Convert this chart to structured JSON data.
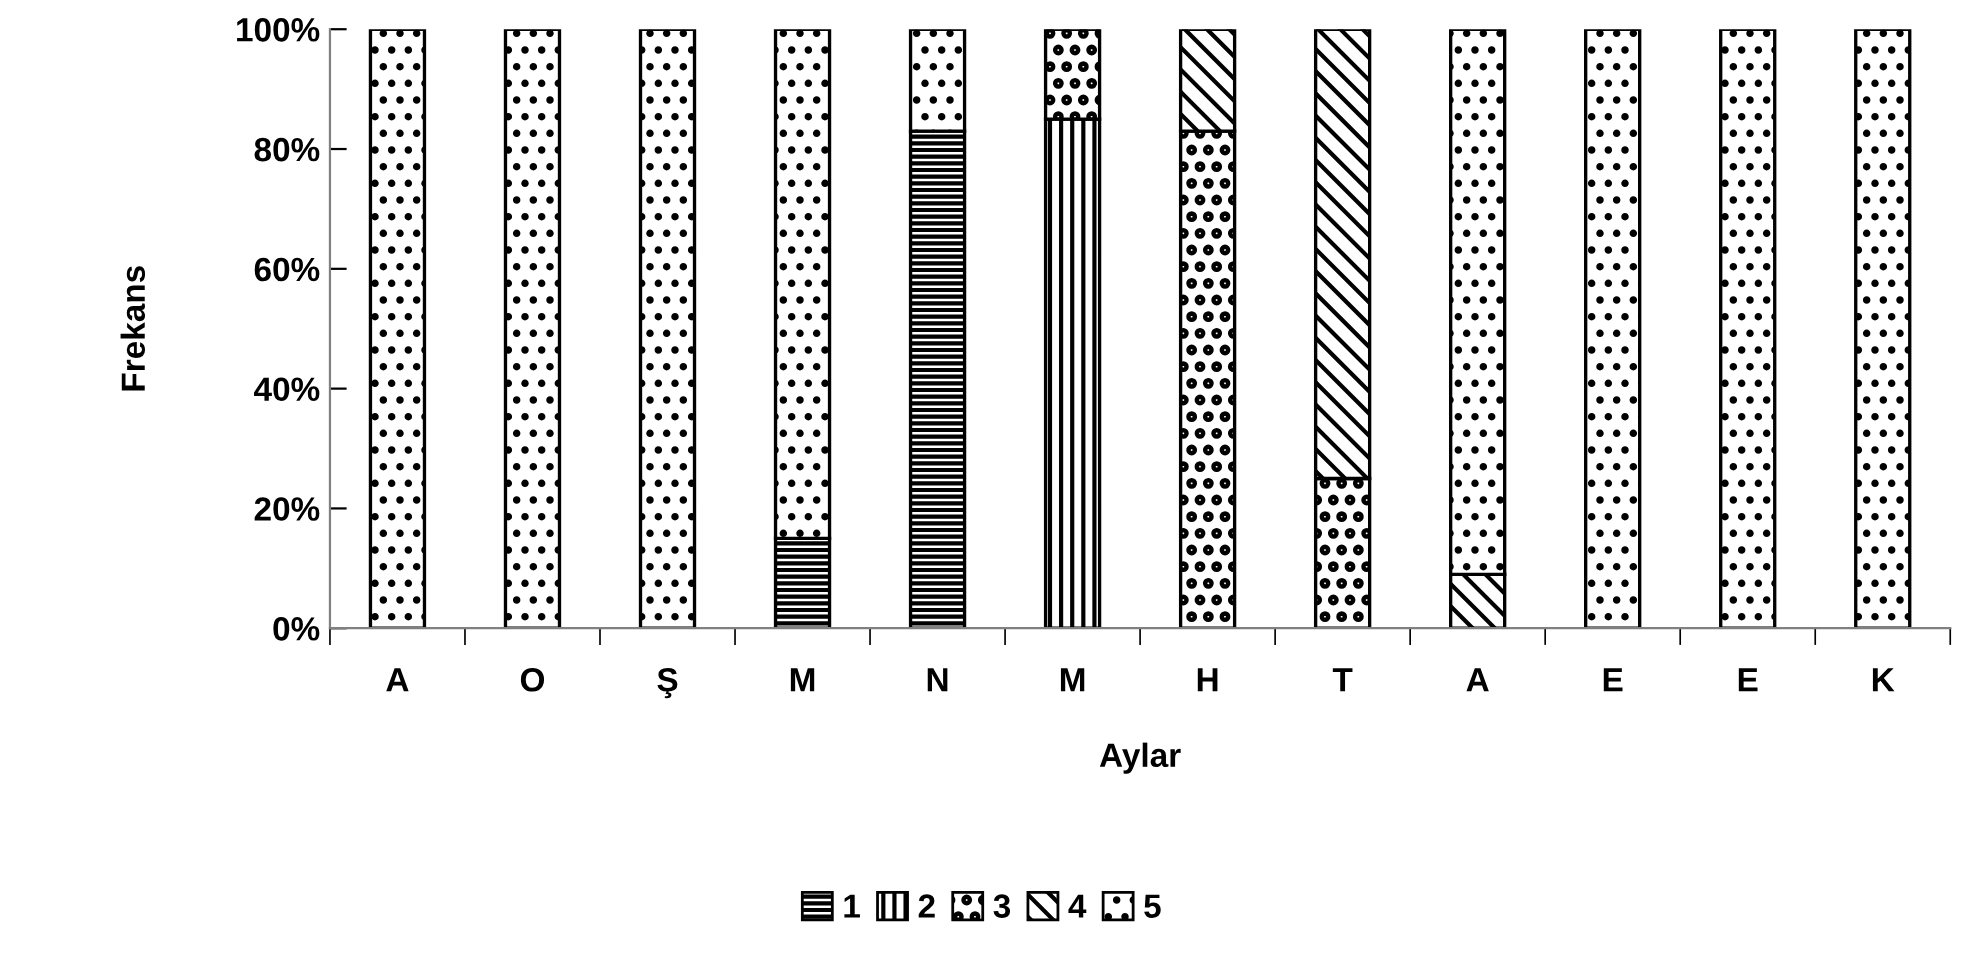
{
  "chart_data": {
    "type": "bar",
    "stacked": true,
    "xlabel": "Aylar",
    "ylabel": "Frekans",
    "categories": [
      "A",
      "O",
      "Ş",
      "M",
      "N",
      "M",
      "H",
      "T",
      "A",
      "E",
      "E",
      "K"
    ],
    "series": [
      {
        "name": "1",
        "color": "#000000",
        "values": [
          null,
          null,
          null,
          15,
          83,
          null,
          null,
          null,
          null,
          null,
          null,
          null
        ]
      },
      {
        "name": "2",
        "color": "#000000",
        "values": [
          null,
          null,
          null,
          null,
          null,
          85,
          null,
          null,
          null,
          null,
          null,
          null
        ]
      },
      {
        "name": "3",
        "color": "#000000",
        "values": [
          null,
          null,
          null,
          null,
          null,
          15,
          83,
          25,
          null,
          null,
          null,
          null
        ]
      },
      {
        "name": "4",
        "color": "#000000",
        "values": [
          null,
          null,
          null,
          null,
          null,
          null,
          17,
          75,
          9,
          null,
          null,
          null
        ]
      },
      {
        "name": "5",
        "color": "#000000",
        "values": [
          100,
          100,
          100,
          85,
          17,
          null,
          null,
          null,
          91,
          100,
          100,
          100
        ]
      }
    ],
    "ylim": [
      0,
      100
    ],
    "yticks": [
      {
        "value": 0,
        "label": "0%"
      },
      {
        "value": 20,
        "label": "20%"
      },
      {
        "value": 40,
        "label": "40%"
      },
      {
        "value": 60,
        "label": "60%"
      },
      {
        "value": 80,
        "label": "80%"
      },
      {
        "value": 100,
        "label": "100%"
      }
    ],
    "grid": false,
    "legend": "bottom"
  }
}
